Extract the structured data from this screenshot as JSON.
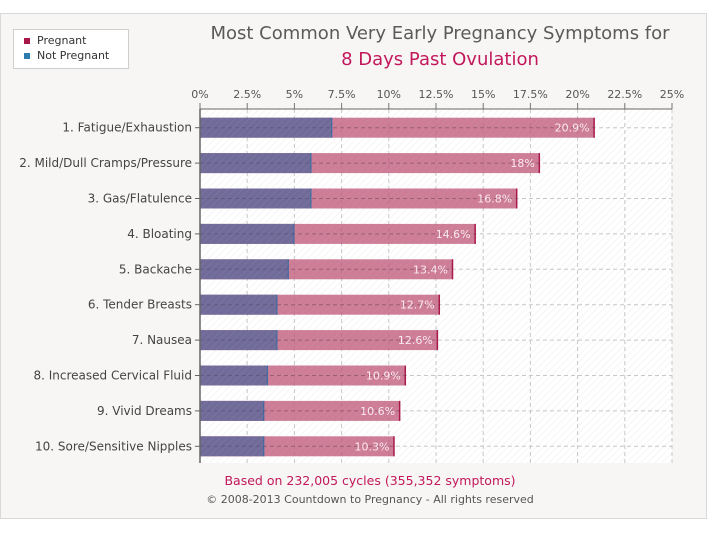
{
  "colors": {
    "pregnant": "#c0587a",
    "pregnant_legend": "#a8164a",
    "not_pregnant": "#6a6a99",
    "not_pregnant_legend": "#2e7bb0",
    "accent": "#c2185b"
  },
  "legend": {
    "items": [
      {
        "label": "Pregnant",
        "icon": "square-marker-icon"
      },
      {
        "label": "Not Pregnant",
        "icon": "square-marker-icon"
      }
    ]
  },
  "chart_data": {
    "type": "bar",
    "orientation": "horizontal",
    "title": "Most Common Very Early Pregnancy Symptoms for",
    "subtitle": "8 Days Past Ovulation",
    "xlabel": "",
    "ylabel": "",
    "xlim": [
      0,
      25
    ],
    "x_ticks": [
      "0%",
      "2.5%",
      "5%",
      "7.5%",
      "10%",
      "12.5%",
      "15%",
      "17.5%",
      "20%",
      "22.5%",
      "25%"
    ],
    "x_tick_values": [
      0,
      2.5,
      5,
      7.5,
      10,
      12.5,
      15,
      17.5,
      20,
      22.5,
      25
    ],
    "grid": true,
    "legend_position": "top-left",
    "categories": [
      "1. Fatigue/Exhaustion",
      "2. Mild/Dull Cramps/Pressure",
      "3. Gas/Flatulence",
      "4. Bloating",
      "5. Backache",
      "6. Tender Breasts",
      "7. Nausea",
      "8. Increased Cervical Fluid",
      "9. Vivid Dreams",
      "10. Sore/Sensitive Nipples"
    ],
    "series": [
      {
        "name": "Pregnant",
        "values": [
          20.9,
          18,
          16.8,
          14.6,
          13.4,
          12.7,
          12.6,
          10.9,
          10.6,
          10.3
        ]
      },
      {
        "name": "Not Pregnant",
        "values": [
          7.0,
          5.9,
          5.9,
          5.0,
          4.7,
          4.1,
          4.1,
          3.6,
          3.4,
          3.4
        ]
      }
    ],
    "data_labels": [
      "20.9%",
      "18%",
      "16.8%",
      "14.6%",
      "13.4%",
      "12.7%",
      "12.6%",
      "10.9%",
      "10.6%",
      "10.3%"
    ]
  },
  "footer": {
    "basis": "Based on 232,005 cycles (355,352 symptoms)",
    "copyright": "© 2008-2013 Countdown to Pregnancy - All rights reserved"
  }
}
